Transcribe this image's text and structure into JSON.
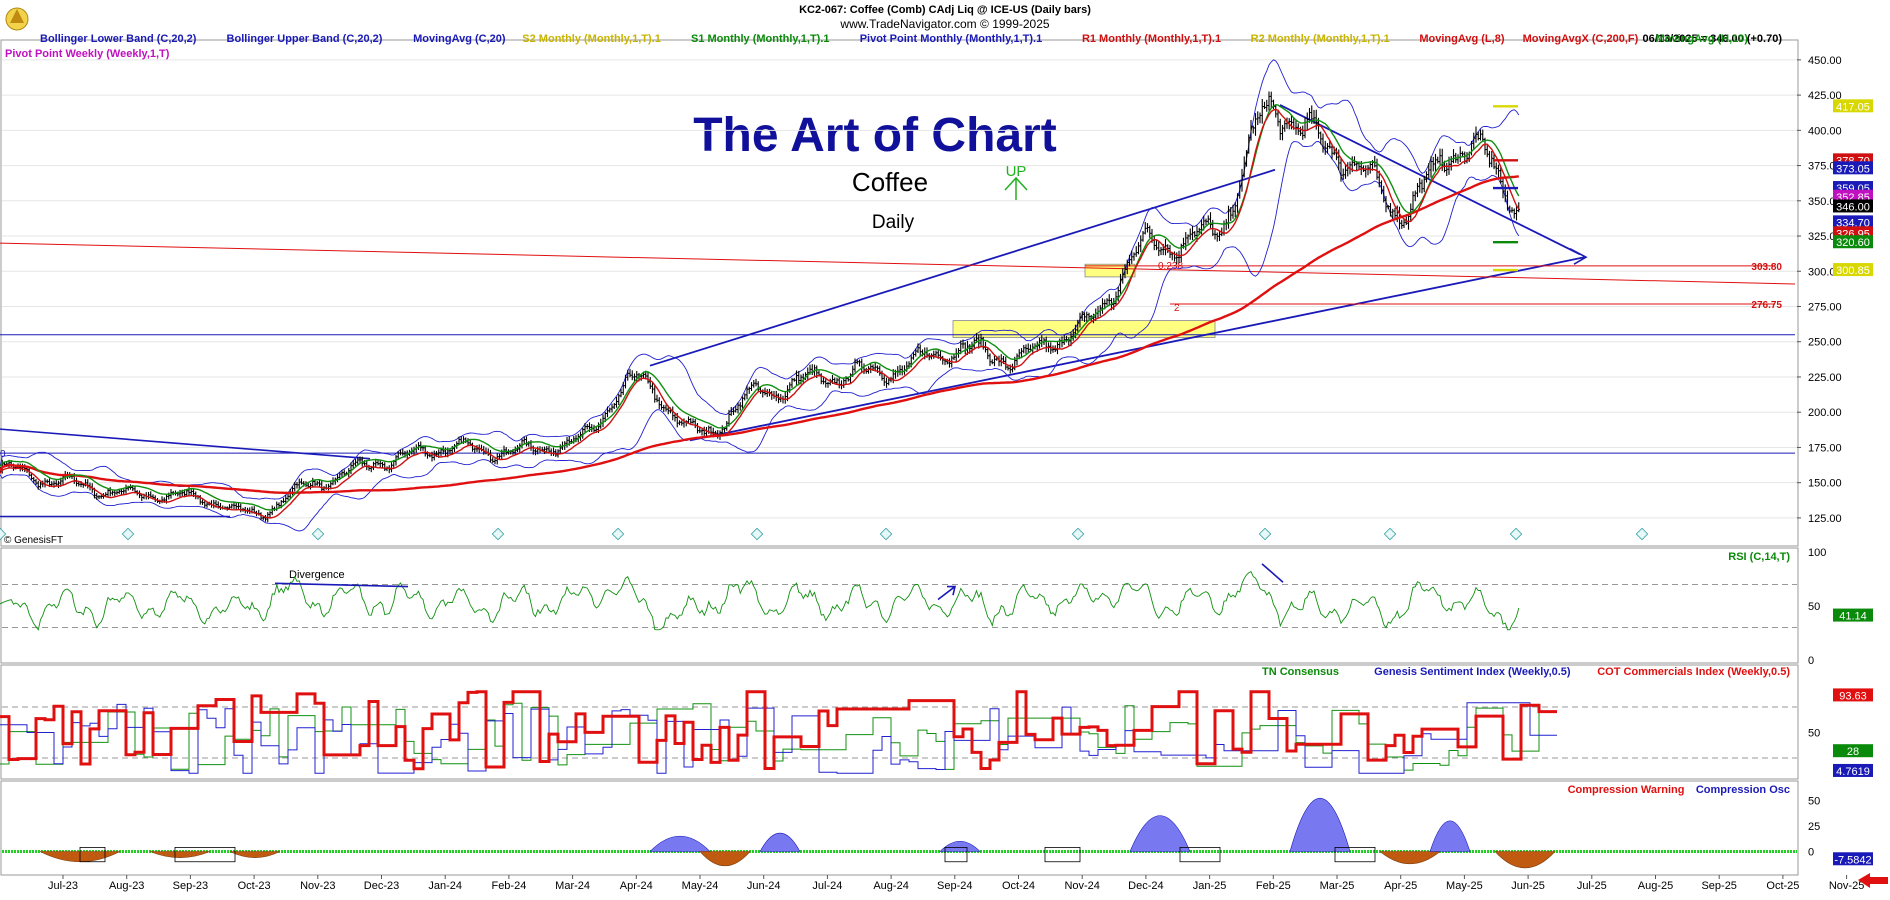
{
  "header": {
    "symbol_line": "KC2-067:  Coffee (Comb) CAdj Liq @ ICE-US  (Daily bars)",
    "copyright_line": "www.TradeNavigator.com © 1999-2025",
    "last_price": "06/13/2025 = 346.00 (+0.70)",
    "genesis_tag": "© GenesisFT"
  },
  "legend": [
    {
      "text": "Bollinger Lower Band (C,20,2)",
      "color": "#1a1ab8"
    },
    {
      "text": "Bollinger Upper Band (C,20,2)",
      "color": "#1a1ab8"
    },
    {
      "text": "MovingAvg (C,20)",
      "color": "#1a1ab8"
    },
    {
      "text": "S2 Monthly (Monthly,1,T).1",
      "color": "#c8b400"
    },
    {
      "text": "S1 Monthly (Monthly,1,T).1",
      "color": "#0a8a0a"
    },
    {
      "text": "Pivot Point Monthly (Monthly,1,T).1",
      "color": "#1a1ab8"
    },
    {
      "text": "R1 Monthly (Monthly,1,T).1",
      "color": "#d01010"
    },
    {
      "text": "R2 Monthly (Monthly,1,T).1",
      "color": "#c8b400"
    },
    {
      "text": "MovingAvg (L,8)",
      "color": "#d01010"
    },
    {
      "text": "MovingAvgX (C,200,F)",
      "color": "#d01010"
    },
    {
      "text": "MovingAvg (H,10)",
      "color": "#0a8a0a"
    }
  ],
  "legend2": {
    "text": "Pivot Point Weekly (Weekly,1,T)",
    "color": "#c010c0"
  },
  "annotations": {
    "title": "The Art of Chart",
    "subtitle": "Coffee",
    "timeframe": "Daily",
    "up": "UP",
    "divergence": "Divergence",
    "fib_238": "0.238",
    "fib_2": "2",
    "left_zero": "0"
  },
  "chart_data": [
    {
      "type": "line",
      "panel": "price",
      "ylim": [
        115,
        457
      ],
      "yticks": [
        450,
        425,
        400,
        375,
        350,
        325,
        300,
        275,
        250,
        225,
        200,
        175,
        150,
        125
      ],
      "ytick_labels": [
        "450.00",
        "425.00",
        "400.00",
        "375.00",
        "350.00",
        "325.00",
        "300.00",
        "275.00",
        "250.00",
        "225.00",
        "200.00",
        "175.00",
        "150.00",
        "125.00"
      ],
      "months": [
        "Jul-23",
        "Aug-23",
        "Sep-23",
        "Oct-23",
        "Nov-23",
        "Dec-23",
        "Jan-24",
        "Feb-24",
        "Mar-24",
        "Apr-24",
        "May-24",
        "Jun-24",
        "Jul-24",
        "Aug-24",
        "Sep-24",
        "Oct-24",
        "Nov-24",
        "Dec-24",
        "Jan-25",
        "Feb-25",
        "Mar-25",
        "Apr-25",
        "May-25",
        "Jun-25",
        "Jul-25",
        "Aug-25",
        "Sep-25",
        "Oct-25",
        "Nov-25"
      ],
      "close_anchors": [
        [
          "Jun-23",
          160
        ],
        [
          "Jul-23",
          150
        ],
        [
          "Aug-23",
          142
        ],
        [
          "Sep-23",
          140
        ],
        [
          "Oct-23",
          128
        ],
        [
          "Nov-23",
          150
        ],
        [
          "Dec-23",
          165
        ],
        [
          "Jan-24",
          175
        ],
        [
          "Feb-24",
          172
        ],
        [
          "Mar-24",
          178
        ],
        [
          "Apr-24",
          222
        ],
        [
          "May-24",
          185
        ],
        [
          "Jun-24",
          215
        ],
        [
          "Jul-24",
          225
        ],
        [
          "Aug-24",
          230
        ],
        [
          "Sep-24",
          245
        ],
        [
          "Oct-24",
          238
        ],
        [
          "Nov-24",
          260
        ],
        [
          "Dec-24",
          318
        ],
        [
          "Jan-25",
          325
        ],
        [
          "Feb-25",
          415
        ],
        [
          "Mar-25",
          385
        ],
        [
          "Apr-25",
          345
        ],
        [
          "May-25",
          390
        ],
        [
          "Jun-25",
          346
        ]
      ],
      "right_labels": [
        {
          "text": "417.05",
          "value": 417.05,
          "bg": "#d8d800",
          "fg": "#ffffff"
        },
        {
          "text": "378.70",
          "value": 378.7,
          "bg": "#d01010",
          "fg": "#ffffff"
        },
        {
          "text": "373.05",
          "value": 373.05,
          "bg": "#1a1ab8",
          "fg": "#ffffff"
        },
        {
          "text": "359.05",
          "value": 359.05,
          "bg": "#1a1ab8",
          "fg": "#ffffff"
        },
        {
          "text": "352.85",
          "value": 352.85,
          "bg": "#c010c0",
          "fg": "#ffffff"
        },
        {
          "text": "346.00",
          "value": 346.0,
          "bg": "#000000",
          "fg": "#ffffff"
        },
        {
          "text": "334.70",
          "value": 334.7,
          "bg": "#1a1ab8",
          "fg": "#ffffff"
        },
        {
          "text": "326.95",
          "value": 326.95,
          "bg": "#d01010",
          "fg": "#ffffff"
        },
        {
          "text": "320.60",
          "value": 320.6,
          "bg": "#0a8a0a",
          "fg": "#ffffff"
        },
        {
          "text": "300.85",
          "value": 300.85,
          "bg": "#d8d800",
          "fg": "#ffffff"
        }
      ],
      "levels": [
        {
          "label": "303.80",
          "value": 303.8
        },
        {
          "label": "276.75",
          "value": 276.75
        }
      ],
      "horizontal_lines": [
        255,
        171
      ],
      "pivots": [
        {
          "name": "R2",
          "value": 417.05,
          "color": "#d8d800"
        },
        {
          "name": "R1",
          "value": 378.7,
          "color": "#d01010"
        },
        {
          "name": "PP",
          "value": 359.05,
          "color": "#1a1ab8"
        },
        {
          "name": "S1",
          "value": 320.6,
          "color": "#0a8a0a"
        },
        {
          "name": "S2",
          "value": 300.85,
          "color": "#d8d800"
        }
      ]
    },
    {
      "type": "line",
      "panel": "rsi",
      "title": "RSI (C,14,T)",
      "ylim": [
        0,
        100
      ],
      "yticks": [
        100,
        50,
        0
      ],
      "dashed_levels": [
        70,
        30
      ],
      "last_value": "41.14"
    },
    {
      "type": "line",
      "panel": "sentiment",
      "series": [
        {
          "name": "TN Consensus",
          "color": "#0a8a0a",
          "last": "28"
        },
        {
          "name": "Genesis Sentiment Index (Weekly,0.5)",
          "color": "#1a1ab8",
          "last": "4.7619"
        },
        {
          "name": "COT Commercials Index (Weekly,0.5)",
          "color": "#e01010",
          "last": "93.63"
        }
      ],
      "ylim": [
        0,
        100
      ],
      "yticks": [
        50
      ],
      "dashed_levels": [
        80,
        20
      ]
    },
    {
      "type": "area",
      "panel": "compression",
      "series": [
        {
          "name": "Compression Warning",
          "color": "#e01010"
        },
        {
          "name": "Compression Osc",
          "color": "#1a1ab8"
        }
      ],
      "ylim": [
        -20,
        60
      ],
      "yticks": [
        50,
        25,
        0
      ],
      "last_value": "-7.5842"
    }
  ]
}
